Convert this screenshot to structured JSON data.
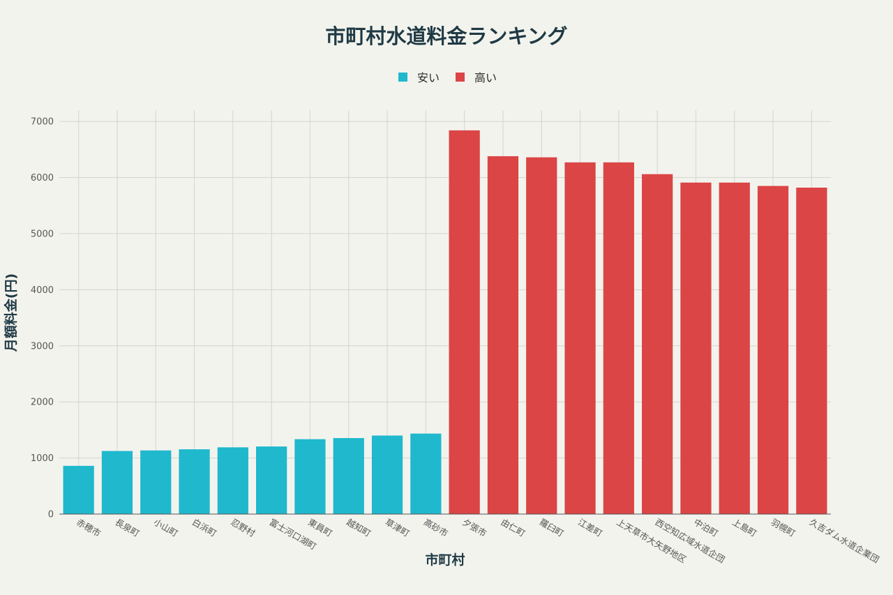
{
  "chart_data": {
    "type": "bar",
    "title": "市町村水道料金ランキング",
    "xlabel": "市町村",
    "ylabel": "月額料金(円)",
    "ylim": [
      0,
      7200
    ],
    "yticks": [
      0,
      1000,
      2000,
      3000,
      4000,
      5000,
      6000,
      7000
    ],
    "grid": true,
    "legend_position": "top-center",
    "categories": [
      "赤穂市",
      "長泉町",
      "小山町",
      "白浜町",
      "忍野村",
      "富士河口湖町",
      "東員町",
      "越知町",
      "草津町",
      "高砂市",
      "夕張市",
      "由仁町",
      "羅臼町",
      "江差町",
      "上天草市大矢野地区",
      "西空知広域水道企団",
      "中泊町",
      "上島町",
      "羽幌町",
      "久吉ダム水道企業団"
    ],
    "values": [
      860,
      1125,
      1135,
      1155,
      1190,
      1205,
      1335,
      1355,
      1400,
      1435,
      6841,
      6380,
      6360,
      6270,
      6270,
      6060,
      5910,
      5910,
      5850,
      5820
    ],
    "groups": [
      "安い",
      "安い",
      "安い",
      "安い",
      "安い",
      "安い",
      "安い",
      "安い",
      "安い",
      "安い",
      "高い",
      "高い",
      "高い",
      "高い",
      "高い",
      "高い",
      "高い",
      "高い",
      "高い",
      "高い"
    ],
    "legend": [
      {
        "name": "安い",
        "color": "#1fb8cd"
      },
      {
        "name": "高い",
        "color": "#db4545"
      }
    ]
  }
}
